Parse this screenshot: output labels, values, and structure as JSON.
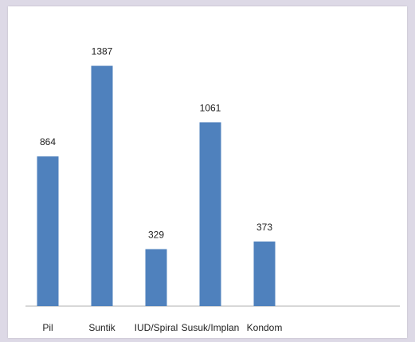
{
  "chart_data": {
    "type": "bar",
    "title": "",
    "xlabel": "",
    "ylabel": "",
    "categories": [
      "Pil",
      "Suntik",
      "IUD/Spiral",
      "Susuk/Implan",
      "Kondom"
    ],
    "values": [
      864,
      1387,
      329,
      1061,
      373
    ],
    "ylim": [
      0,
      1500
    ],
    "grid": false,
    "legend": "none",
    "bar_color": "#4f81bd",
    "axis_color": "#b0b0b0"
  }
}
